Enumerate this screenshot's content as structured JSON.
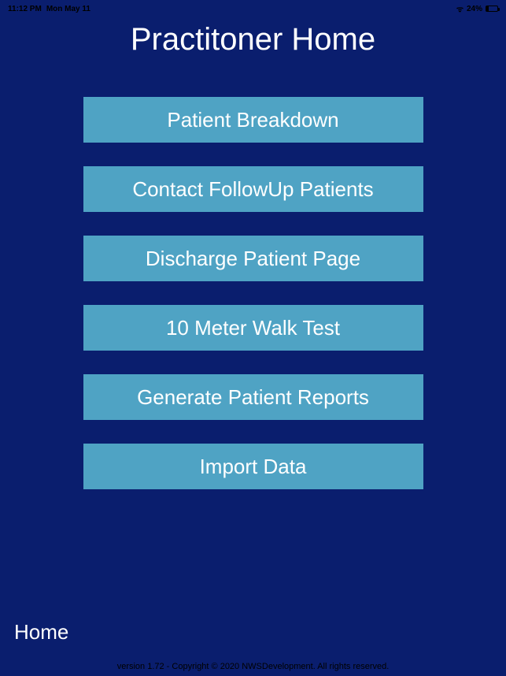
{
  "statusBar": {
    "time": "11:12 PM",
    "date": "Mon May 11",
    "batteryPercent": "24%"
  },
  "title": "Practitoner Home",
  "buttons": [
    {
      "label": "Patient Breakdown"
    },
    {
      "label": "Contact FollowUp Patients"
    },
    {
      "label": "Discharge Patient Page"
    },
    {
      "label": "10 Meter Walk Test"
    },
    {
      "label": "Generate Patient Reports"
    },
    {
      "label": "Import Data"
    }
  ],
  "homeLink": "Home",
  "footer": "version 1.72 - Copyright © 2020 NWSDevelopment. All rights reserved.",
  "colors": {
    "background": "#0a1e6e",
    "button": "#4fa3c4",
    "text": "#ffffff"
  }
}
